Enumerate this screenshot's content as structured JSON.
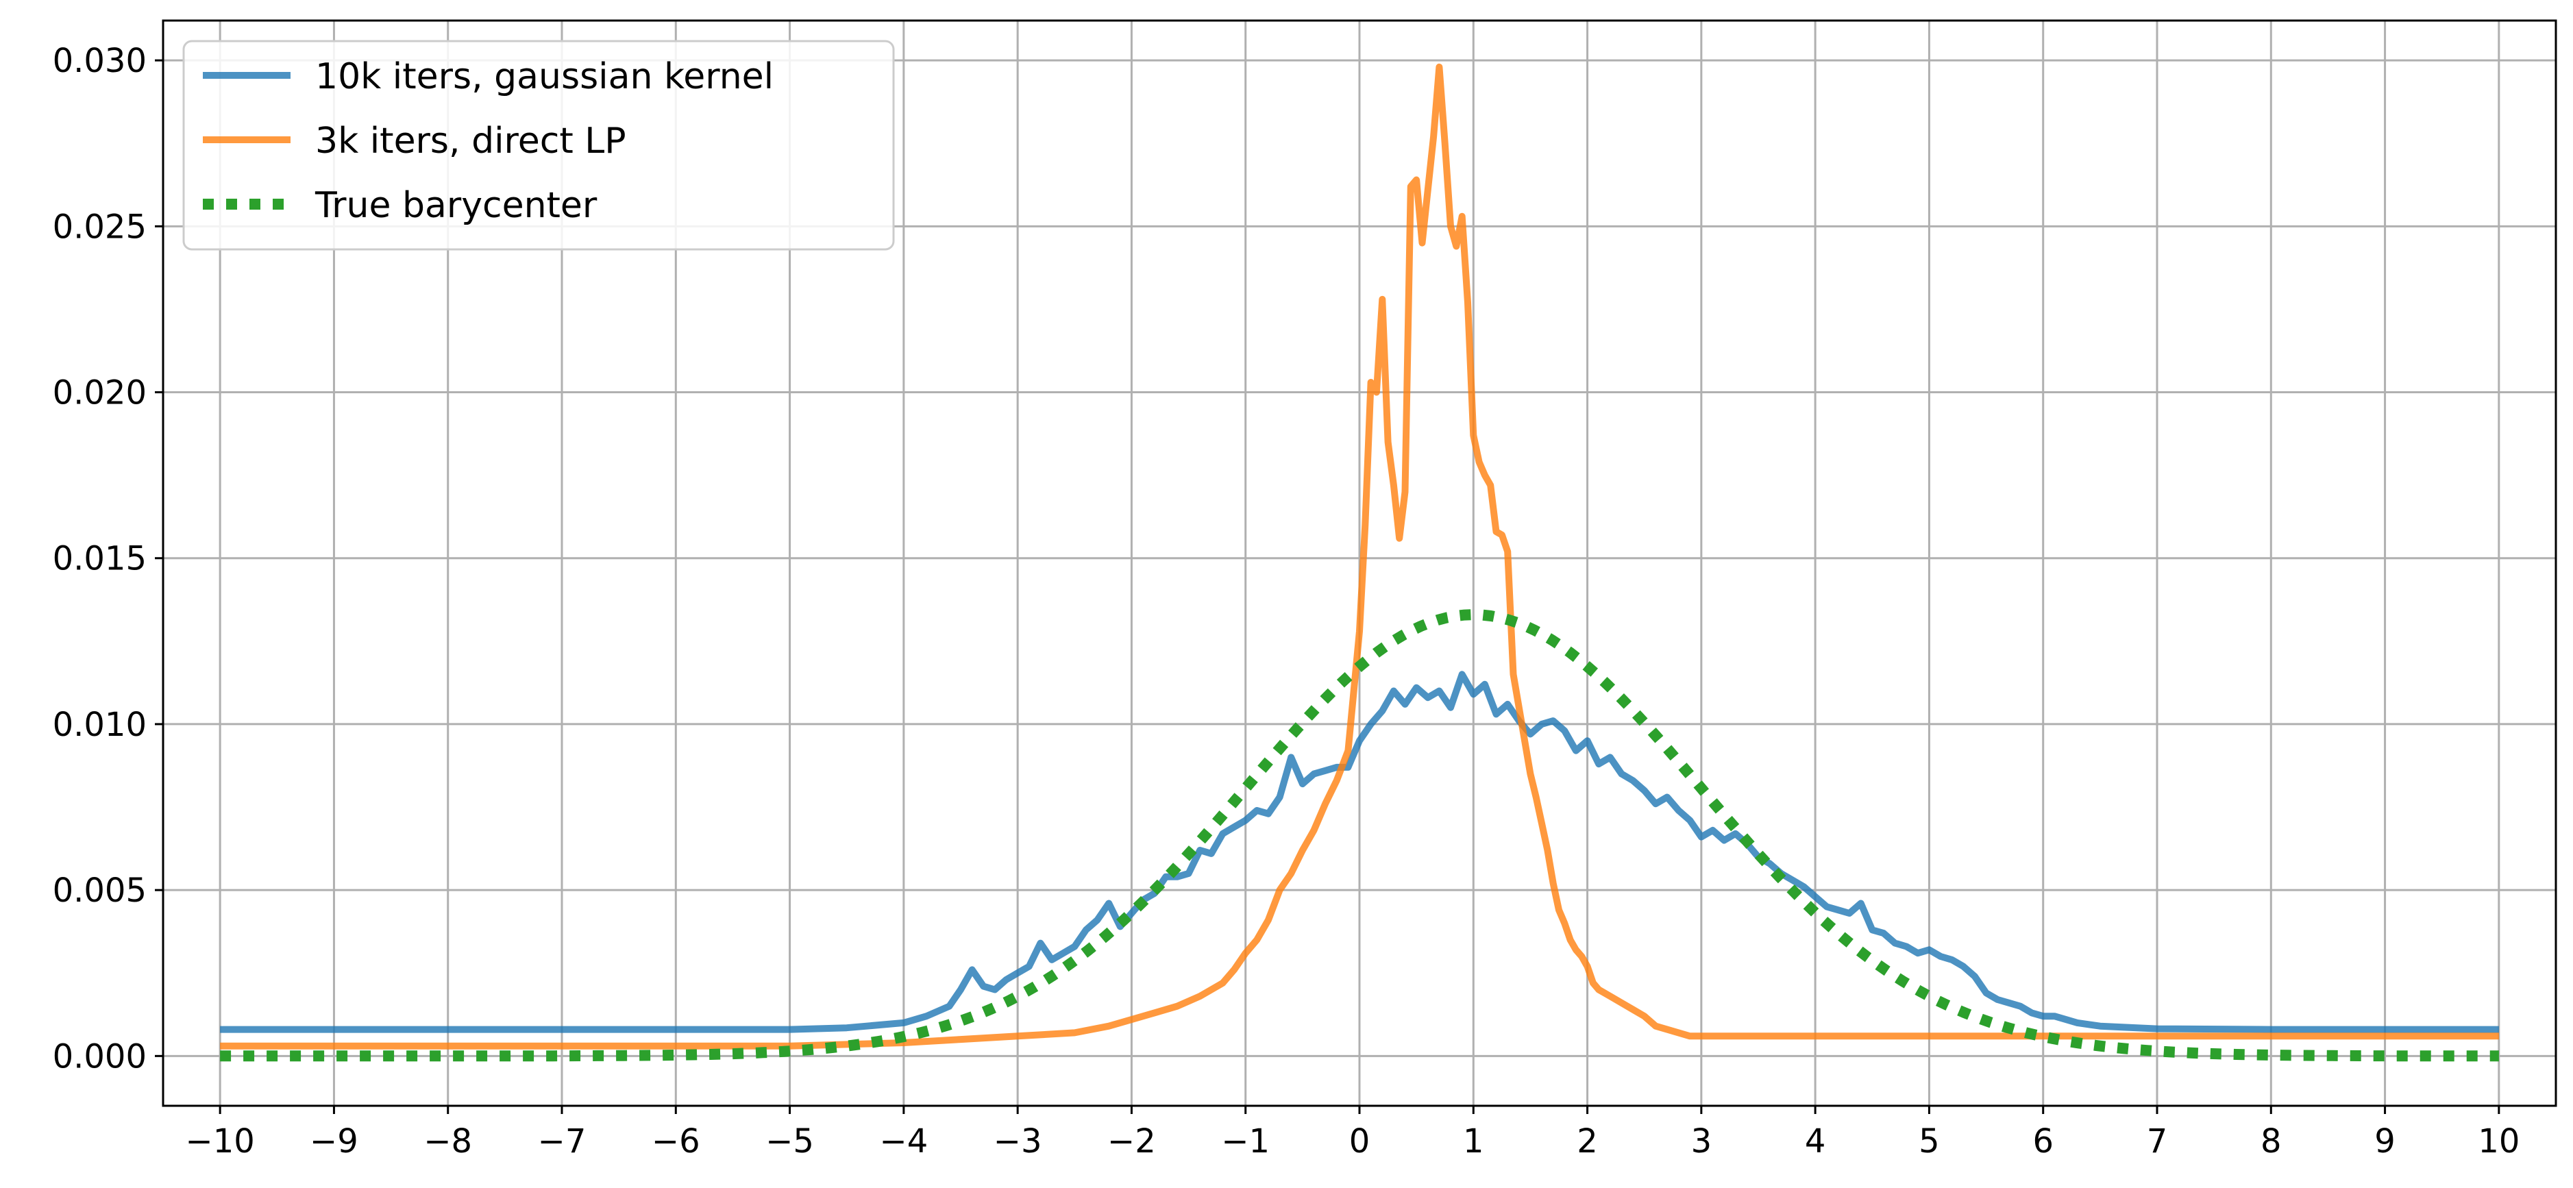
{
  "chart_data": {
    "type": "line",
    "title": "",
    "xlabel": "",
    "ylabel": "",
    "xlim": [
      -10.5,
      10.5
    ],
    "ylim": [
      -0.0015,
      0.0312
    ],
    "grid": true,
    "legend_position": "top-left",
    "x_ticks": [
      -10,
      -9,
      -8,
      -7,
      -6,
      -5,
      -4,
      -3,
      -2,
      -1,
      0,
      1,
      2,
      3,
      4,
      5,
      6,
      7,
      8,
      9,
      10
    ],
    "x_tick_labels": [
      "−10",
      "−9",
      "−8",
      "−7",
      "−6",
      "−5",
      "−4",
      "−3",
      "−2",
      "−1",
      "0",
      "1",
      "2",
      "3",
      "4",
      "5",
      "6",
      "7",
      "8",
      "9",
      "10"
    ],
    "y_ticks": [
      0.0,
      0.005,
      0.01,
      0.015,
      0.02,
      0.025,
      0.03
    ],
    "y_tick_labels": [
      "0.000",
      "0.005",
      "0.010",
      "0.015",
      "0.020",
      "0.025",
      "0.030"
    ],
    "series": [
      {
        "name": "10k iters, gaussian kernel",
        "color": "#1f77b4",
        "style": "solid",
        "x": [
          -10,
          -9,
          -8,
          -7,
          -6,
          -5,
          -4.5,
          -4.0,
          -3.8,
          -3.6,
          -3.5,
          -3.4,
          -3.3,
          -3.2,
          -3.1,
          -3.0,
          -2.9,
          -2.8,
          -2.7,
          -2.6,
          -2.5,
          -2.4,
          -2.3,
          -2.2,
          -2.1,
          -2.0,
          -1.9,
          -1.8,
          -1.7,
          -1.6,
          -1.5,
          -1.4,
          -1.3,
          -1.2,
          -1.1,
          -1.0,
          -0.9,
          -0.8,
          -0.7,
          -0.6,
          -0.5,
          -0.4,
          -0.3,
          -0.2,
          -0.1,
          0.0,
          0.1,
          0.2,
          0.3,
          0.4,
          0.5,
          0.6,
          0.7,
          0.8,
          0.9,
          1.0,
          1.1,
          1.2,
          1.3,
          1.4,
          1.5,
          1.6,
          1.7,
          1.8,
          1.9,
          2.0,
          2.1,
          2.2,
          2.3,
          2.4,
          2.5,
          2.6,
          2.7,
          2.8,
          2.9,
          3.0,
          3.1,
          3.2,
          3.3,
          3.4,
          3.5,
          3.6,
          3.7,
          3.8,
          3.9,
          4.0,
          4.1,
          4.2,
          4.3,
          4.4,
          4.5,
          4.6,
          4.7,
          4.8,
          4.9,
          5.0,
          5.1,
          5.2,
          5.3,
          5.4,
          5.5,
          5.6,
          5.7,
          5.8,
          5.9,
          6.0,
          6.1,
          6.2,
          6.3,
          6.5,
          7.0,
          8.0,
          9.0,
          10.0
        ],
        "y": [
          0.0008,
          0.0008,
          0.0008,
          0.0008,
          0.0008,
          0.0008,
          0.00085,
          0.001,
          0.0012,
          0.0015,
          0.002,
          0.0026,
          0.0021,
          0.002,
          0.0023,
          0.0025,
          0.0027,
          0.0034,
          0.0029,
          0.0031,
          0.0033,
          0.0038,
          0.0041,
          0.0046,
          0.0039,
          0.0043,
          0.0047,
          0.0049,
          0.0054,
          0.0054,
          0.0055,
          0.0062,
          0.0061,
          0.0067,
          0.0069,
          0.0071,
          0.0074,
          0.0073,
          0.0078,
          0.009,
          0.0082,
          0.0085,
          0.0086,
          0.0087,
          0.0087,
          0.0095,
          0.01,
          0.0104,
          0.011,
          0.0106,
          0.0111,
          0.0108,
          0.011,
          0.0105,
          0.0115,
          0.0109,
          0.0112,
          0.0103,
          0.0106,
          0.0101,
          0.0097,
          0.01,
          0.0101,
          0.0098,
          0.0092,
          0.0095,
          0.0088,
          0.009,
          0.0085,
          0.0083,
          0.008,
          0.0076,
          0.0078,
          0.0074,
          0.0071,
          0.0066,
          0.0068,
          0.0065,
          0.0067,
          0.0064,
          0.006,
          0.0058,
          0.0055,
          0.0053,
          0.0051,
          0.0048,
          0.0045,
          0.0044,
          0.0043,
          0.0046,
          0.0038,
          0.0037,
          0.0034,
          0.0033,
          0.0031,
          0.0032,
          0.003,
          0.0029,
          0.0027,
          0.0024,
          0.0019,
          0.0017,
          0.0016,
          0.0015,
          0.0013,
          0.0012,
          0.0012,
          0.0011,
          0.001,
          0.0009,
          0.00082,
          0.0008,
          0.0008,
          0.0008
        ]
      },
      {
        "name": "3k iters, direct LP",
        "color": "#ff7f0e",
        "style": "solid",
        "x": [
          -10,
          -8,
          -6,
          -5,
          -4,
          -3.5,
          -3.0,
          -2.5,
          -2.2,
          -2.0,
          -1.8,
          -1.6,
          -1.4,
          -1.2,
          -1.1,
          -1.0,
          -0.9,
          -0.8,
          -0.7,
          -0.6,
          -0.5,
          -0.4,
          -0.3,
          -0.2,
          -0.1,
          0.0,
          0.05,
          0.1,
          0.15,
          0.2,
          0.25,
          0.3,
          0.35,
          0.4,
          0.45,
          0.5,
          0.55,
          0.6,
          0.65,
          0.7,
          0.75,
          0.8,
          0.85,
          0.9,
          0.95,
          1.0,
          1.05,
          1.1,
          1.15,
          1.2,
          1.25,
          1.3,
          1.35,
          1.4,
          1.45,
          1.5,
          1.55,
          1.6,
          1.65,
          1.7,
          1.75,
          1.8,
          1.85,
          1.9,
          1.95,
          2.0,
          2.05,
          2.1,
          2.2,
          2.3,
          2.4,
          2.5,
          2.6,
          2.7,
          2.8,
          2.9,
          3.0,
          3.2,
          3.4,
          3.6,
          3.8,
          4.0,
          4.5,
          5.0,
          6.0,
          7.0,
          8.0,
          9.0,
          10.0
        ],
        "y": [
          0.0003,
          0.0003,
          0.0003,
          0.0003,
          0.0004,
          0.0005,
          0.0006,
          0.0007,
          0.0009,
          0.0011,
          0.0013,
          0.0015,
          0.0018,
          0.0022,
          0.0026,
          0.0031,
          0.0035,
          0.0041,
          0.005,
          0.0055,
          0.0062,
          0.0068,
          0.0076,
          0.0083,
          0.0092,
          0.0128,
          0.016,
          0.0203,
          0.02,
          0.0228,
          0.0185,
          0.0172,
          0.0156,
          0.017,
          0.0262,
          0.0264,
          0.0245,
          0.0261,
          0.0277,
          0.0298,
          0.0275,
          0.025,
          0.0244,
          0.0253,
          0.0227,
          0.0187,
          0.0179,
          0.0175,
          0.0172,
          0.0158,
          0.0157,
          0.0152,
          0.0115,
          0.0105,
          0.0095,
          0.0085,
          0.0078,
          0.007,
          0.0062,
          0.0052,
          0.0044,
          0.004,
          0.0035,
          0.0032,
          0.003,
          0.0027,
          0.0022,
          0.002,
          0.0018,
          0.0016,
          0.0014,
          0.0012,
          0.0009,
          0.0008,
          0.0007,
          0.0006,
          0.0006,
          0.0006,
          0.0006,
          0.0006,
          0.0006,
          0.0006,
          0.0006,
          0.0006,
          0.0006,
          0.0006,
          0.0006,
          0.0006,
          0.0006
        ]
      },
      {
        "name": "True barycenter",
        "color": "#2ca02c",
        "style": "dotted",
        "mean": 1.0,
        "std": 2.0,
        "peak": 0.0133,
        "x_range": [
          -10,
          10
        ],
        "samples": 261
      }
    ]
  }
}
